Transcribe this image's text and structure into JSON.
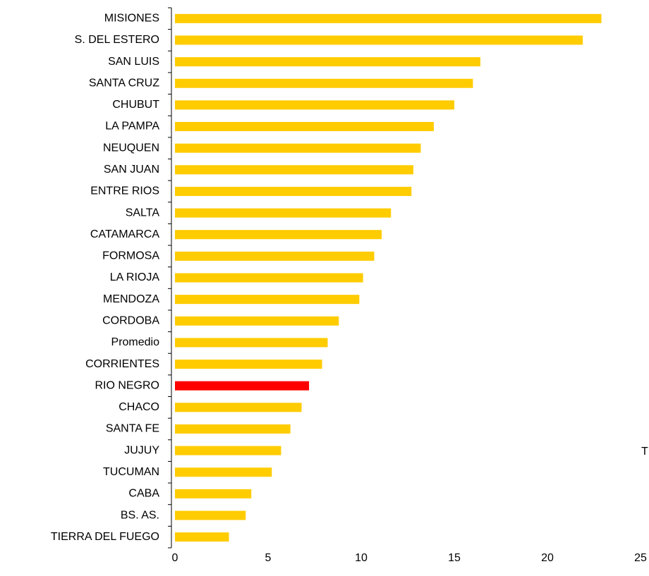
{
  "chart_data": {
    "type": "bar",
    "orientation": "horizontal",
    "categories": [
      "MISIONES",
      "S. DEL ESTERO",
      "SAN LUIS",
      "SANTA CRUZ",
      "CHUBUT",
      "LA PAMPA",
      "NEUQUEN",
      "SAN JUAN",
      "ENTRE RIOS",
      "SALTA",
      "CATAMARCA",
      "FORMOSA",
      "LA RIOJA",
      "MENDOZA",
      "CORDOBA",
      "Promedio",
      "CORRIENTES",
      "RIO NEGRO",
      "CHACO",
      "SANTA FE",
      "JUJUY",
      "TUCUMAN",
      "CABA",
      "BS. AS.",
      "TIERRA DEL FUEGO"
    ],
    "values": [
      22.9,
      21.9,
      16.4,
      16.0,
      15.0,
      13.9,
      13.2,
      12.8,
      12.7,
      11.6,
      11.1,
      10.7,
      10.1,
      9.9,
      8.8,
      8.2,
      7.9,
      7.2,
      6.8,
      6.2,
      5.7,
      5.2,
      4.1,
      3.8,
      2.9
    ],
    "colors": [
      "#ffcc00",
      "#ffcc00",
      "#ffcc00",
      "#ffcc00",
      "#ffcc00",
      "#ffcc00",
      "#ffcc00",
      "#ffcc00",
      "#ffcc00",
      "#ffcc00",
      "#ffcc00",
      "#ffcc00",
      "#ffcc00",
      "#ffcc00",
      "#ffcc00",
      "#ffcc00",
      "#ffcc00",
      "#ff0000",
      "#ffcc00",
      "#ffcc00",
      "#ffcc00",
      "#ffcc00",
      "#ffcc00",
      "#ffcc00",
      "#ffcc00"
    ],
    "xlim": [
      0,
      25
    ],
    "xticks": [
      0,
      5,
      10,
      15,
      20,
      25
    ],
    "annotation": "T"
  }
}
